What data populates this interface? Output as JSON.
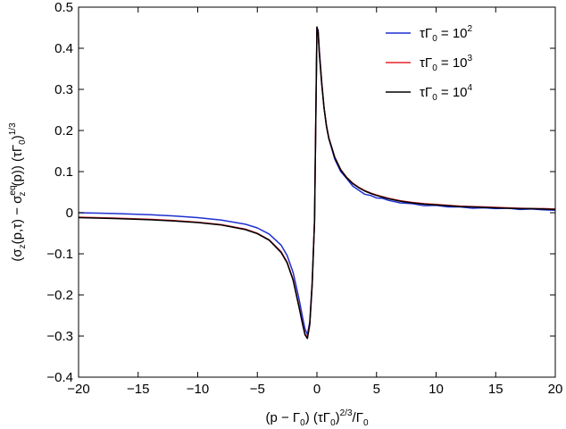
{
  "chart_data": {
    "type": "line",
    "xlabel": "(p − Γ0) (τΓ0)2/3/Γ0",
    "ylabel": "(σz(p,τ) − σzeq(p)) (τΓ0)1/3",
    "xlim": [
      -20,
      20
    ],
    "ylim": [
      -0.4,
      0.5
    ],
    "xticks": [
      -20,
      -15,
      -10,
      -5,
      0,
      5,
      10,
      15,
      20
    ],
    "yticks": [
      -0.4,
      -0.3,
      -0.2,
      -0.1,
      0,
      0.1,
      0.2,
      0.3,
      0.4,
      0.5
    ],
    "xtick_labels": [
      "−20",
      "−15",
      "−10",
      "−5",
      "0",
      "5",
      "10",
      "15",
      "20"
    ],
    "ytick_labels": [
      "−0.4",
      "−0.3",
      "−0.2",
      "−0.1",
      "0",
      "0.1",
      "0.2",
      "0.3",
      "0.4",
      "0.5"
    ],
    "grid": false,
    "legend_position": "top-right",
    "series": [
      {
        "name": "τΓ0 = 10^2",
        "legend": {
          "base": "τΓ",
          "sub": "0",
          "mid": " = 10",
          "sup": "2"
        },
        "color": "#1f2fd0",
        "x": [
          -20,
          -17,
          -14,
          -12,
          -10,
          -8,
          -6,
          -5,
          -4,
          -3,
          -2.5,
          -2,
          -1.5,
          -1.2,
          -1,
          -0.8,
          -0.6,
          -0.4,
          -0.2,
          0,
          0.1,
          0.2,
          0.4,
          0.6,
          0.8,
          1,
          1.5,
          2,
          2.5,
          3,
          3.5,
          4,
          4.5,
          5,
          5.5,
          6,
          7,
          8,
          9,
          10,
          11,
          12,
          13,
          14,
          15,
          16,
          17,
          18,
          19,
          20
        ],
        "y": [
          0.0,
          -0.002,
          -0.005,
          -0.008,
          -0.012,
          -0.018,
          -0.028,
          -0.037,
          -0.052,
          -0.079,
          -0.104,
          -0.145,
          -0.21,
          -0.255,
          -0.283,
          -0.296,
          -0.265,
          -0.17,
          -0.02,
          0.44,
          0.445,
          0.395,
          0.32,
          0.255,
          0.21,
          0.18,
          0.13,
          0.1,
          0.083,
          0.065,
          0.055,
          0.045,
          0.042,
          0.036,
          0.035,
          0.03,
          0.024,
          0.022,
          0.017,
          0.018,
          0.014,
          0.014,
          0.011,
          0.012,
          0.01,
          0.011,
          0.008,
          0.009,
          0.007,
          0.006
        ]
      },
      {
        "name": "τΓ0 = 10^3",
        "legend": {
          "base": "τΓ",
          "sub": "0",
          "mid": " = 10",
          "sup": "3"
        },
        "color": "#e8232a",
        "x": [
          -20,
          -17,
          -14,
          -12,
          -10,
          -8,
          -6,
          -5,
          -4,
          -3,
          -2.5,
          -2,
          -1.5,
          -1.2,
          -1,
          -0.8,
          -0.6,
          -0.4,
          -0.2,
          0,
          0.1,
          0.2,
          0.4,
          0.6,
          0.8,
          1,
          1.5,
          2,
          2.5,
          3,
          3.5,
          4,
          4.5,
          5,
          5.5,
          6,
          7,
          8,
          9,
          10,
          11,
          12,
          13,
          14,
          15,
          16,
          17,
          18,
          19,
          20
        ],
        "y": [
          -0.011,
          -0.013,
          -0.016,
          -0.019,
          -0.023,
          -0.029,
          -0.04,
          -0.05,
          -0.066,
          -0.095,
          -0.12,
          -0.162,
          -0.228,
          -0.27,
          -0.295,
          -0.303,
          -0.27,
          -0.175,
          -0.02,
          0.45,
          0.44,
          0.39,
          0.315,
          0.255,
          0.212,
          0.182,
          0.135,
          0.105,
          0.086,
          0.072,
          0.062,
          0.054,
          0.048,
          0.043,
          0.039,
          0.035,
          0.029,
          0.025,
          0.022,
          0.02,
          0.018,
          0.016,
          0.015,
          0.014,
          0.013,
          0.012,
          0.011,
          0.01,
          0.01,
          0.009
        ]
      },
      {
        "name": "τΓ0 = 10^4",
        "legend": {
          "base": "τΓ",
          "sub": "0",
          "mid": " = 10",
          "sup": "4"
        },
        "color": "#000000",
        "x": [
          -20,
          -17,
          -14,
          -12,
          -10,
          -8,
          -6,
          -5,
          -4,
          -3,
          -2.5,
          -2,
          -1.5,
          -1.2,
          -1,
          -0.8,
          -0.6,
          -0.4,
          -0.2,
          0,
          0.1,
          0.2,
          0.4,
          0.6,
          0.8,
          1,
          1.5,
          2,
          2.5,
          3,
          3.5,
          4,
          4.5,
          5,
          5.5,
          6,
          7,
          8,
          9,
          10,
          11,
          12,
          13,
          14,
          15,
          16,
          17,
          18,
          19,
          20
        ],
        "y": [
          -0.012,
          -0.014,
          -0.017,
          -0.02,
          -0.024,
          -0.03,
          -0.041,
          -0.051,
          -0.067,
          -0.097,
          -0.122,
          -0.164,
          -0.23,
          -0.272,
          -0.297,
          -0.306,
          -0.272,
          -0.176,
          -0.02,
          0.452,
          0.44,
          0.389,
          0.314,
          0.254,
          0.211,
          0.181,
          0.134,
          0.104,
          0.085,
          0.071,
          0.061,
          0.053,
          0.047,
          0.042,
          0.038,
          0.034,
          0.028,
          0.024,
          0.021,
          0.019,
          0.017,
          0.015,
          0.014,
          0.013,
          0.012,
          0.011,
          0.01,
          0.01,
          0.009,
          0.008
        ]
      }
    ]
  }
}
